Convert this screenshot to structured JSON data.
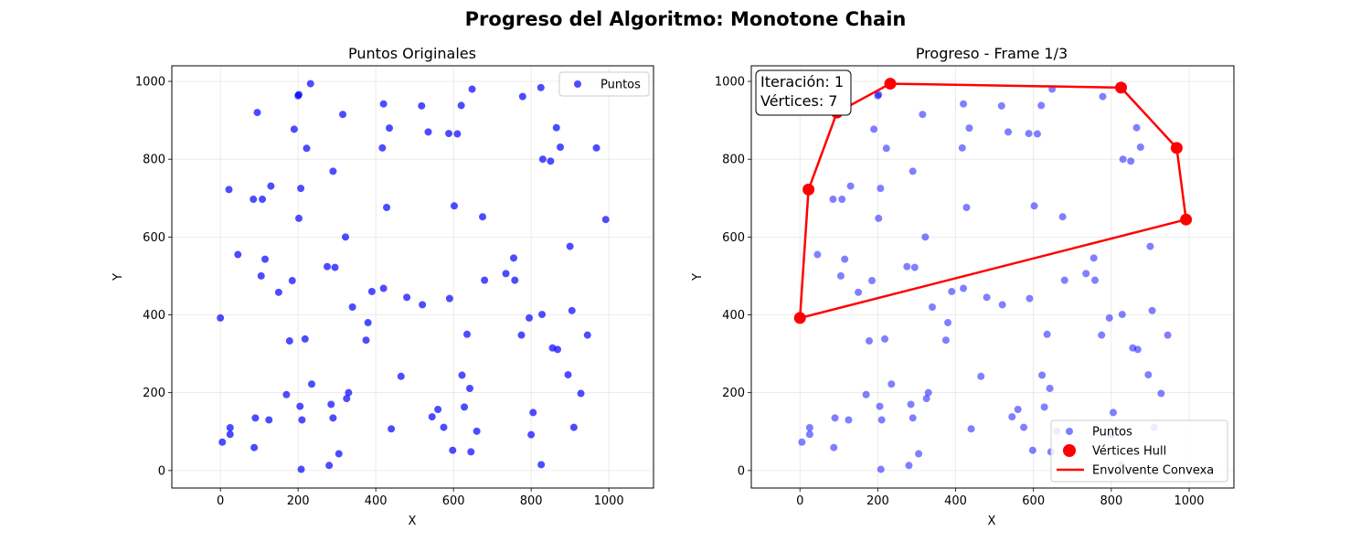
{
  "figure": {
    "suptitle": "Progreso del Algoritmo: Monotone Chain"
  },
  "chart_data": [
    {
      "type": "scatter",
      "title": "Puntos Originales",
      "xlabel": "X",
      "ylabel": "Y",
      "xlim": [
        -125,
        1115
      ],
      "ylim": [
        -45,
        1040
      ],
      "xticks": [
        0,
        200,
        400,
        600,
        800,
        1000
      ],
      "yticks": [
        0,
        200,
        400,
        600,
        800,
        1000
      ],
      "grid": true,
      "legend_position": "upper right",
      "series": [
        {
          "name": "Puntos",
          "color": "#0000ff",
          "alpha": 0.7,
          "ref": "points"
        }
      ]
    },
    {
      "type": "scatter",
      "title": "Progreso - Frame 1/3",
      "xlabel": "X",
      "ylabel": "Y",
      "xlim": [
        -125,
        1115
      ],
      "ylim": [
        -45,
        1040
      ],
      "xticks": [
        0,
        200,
        400,
        600,
        800,
        1000
      ],
      "yticks": [
        0,
        200,
        400,
        600,
        800,
        1000
      ],
      "grid": true,
      "legend_position": "lower right",
      "info_box": {
        "line1": "Iteración: 1",
        "line2": "Vértices: 7",
        "position": "upper left"
      },
      "series": [
        {
          "name": "Puntos",
          "color": "#0000ff",
          "alpha": 0.5,
          "ref": "points"
        },
        {
          "name": "Vértices Hull",
          "color": "#ff0000",
          "marker": "circle"
        },
        {
          "name": "Envolvente Convexa",
          "color": "#ff0000",
          "marker": "line"
        }
      ],
      "hull_vertices": [
        [
          0,
          392
        ],
        [
          22,
          722
        ],
        [
          95,
          920
        ],
        [
          232,
          994
        ],
        [
          825,
          984
        ],
        [
          968,
          829
        ],
        [
          992,
          645
        ]
      ]
    }
  ],
  "points": [
    [
      0,
      392
    ],
    [
      5,
      73
    ],
    [
      22,
      722
    ],
    [
      25,
      110
    ],
    [
      25,
      93
    ],
    [
      45,
      555
    ],
    [
      85,
      697
    ],
    [
      87,
      59
    ],
    [
      90,
      135
    ],
    [
      95,
      920
    ],
    [
      105,
      500
    ],
    [
      108,
      697
    ],
    [
      115,
      543
    ],
    [
      125,
      130
    ],
    [
      130,
      731
    ],
    [
      150,
      458
    ],
    [
      170,
      195
    ],
    [
      178,
      333
    ],
    [
      185,
      488
    ],
    [
      190,
      877
    ],
    [
      200,
      963
    ],
    [
      202,
      966
    ],
    [
      202,
      648
    ],
    [
      205,
      165
    ],
    [
      207,
      725
    ],
    [
      208,
      3
    ],
    [
      210,
      130
    ],
    [
      218,
      338
    ],
    [
      222,
      828
    ],
    [
      232,
      994
    ],
    [
      235,
      222
    ],
    [
      275,
      524
    ],
    [
      280,
      13
    ],
    [
      285,
      170
    ],
    [
      290,
      769
    ],
    [
      290,
      135
    ],
    [
      295,
      522
    ],
    [
      305,
      43
    ],
    [
      315,
      915
    ],
    [
      322,
      600
    ],
    [
      325,
      185
    ],
    [
      330,
      200
    ],
    [
      340,
      420
    ],
    [
      375,
      335
    ],
    [
      380,
      380
    ],
    [
      390,
      460
    ],
    [
      417,
      829
    ],
    [
      420,
      942
    ],
    [
      420,
      468
    ],
    [
      428,
      676
    ],
    [
      435,
      880
    ],
    [
      440,
      107
    ],
    [
      465,
      242
    ],
    [
      480,
      445
    ],
    [
      518,
      937
    ],
    [
      520,
      426
    ],
    [
      535,
      870
    ],
    [
      545,
      138
    ],
    [
      560,
      157
    ],
    [
      575,
      111
    ],
    [
      588,
      866
    ],
    [
      590,
      442
    ],
    [
      598,
      52
    ],
    [
      602,
      680
    ],
    [
      610,
      865
    ],
    [
      620,
      938
    ],
    [
      622,
      245
    ],
    [
      628,
      163
    ],
    [
      635,
      350
    ],
    [
      642,
      211
    ],
    [
      645,
      48
    ],
    [
      648,
      980
    ],
    [
      660,
      101
    ],
    [
      675,
      652
    ],
    [
      680,
      489
    ],
    [
      735,
      506
    ],
    [
      755,
      546
    ],
    [
      758,
      489
    ],
    [
      775,
      348
    ],
    [
      778,
      961
    ],
    [
      795,
      392
    ],
    [
      800,
      92
    ],
    [
      805,
      149
    ],
    [
      825,
      984
    ],
    [
      826,
      15
    ],
    [
      828,
      401
    ],
    [
      830,
      800
    ],
    [
      850,
      795
    ],
    [
      855,
      315
    ],
    [
      865,
      881
    ],
    [
      868,
      311
    ],
    [
      875,
      831
    ],
    [
      895,
      246
    ],
    [
      900,
      576
    ],
    [
      905,
      411
    ],
    [
      910,
      111
    ],
    [
      928,
      198
    ],
    [
      945,
      348
    ],
    [
      968,
      829
    ],
    [
      992,
      645
    ]
  ]
}
